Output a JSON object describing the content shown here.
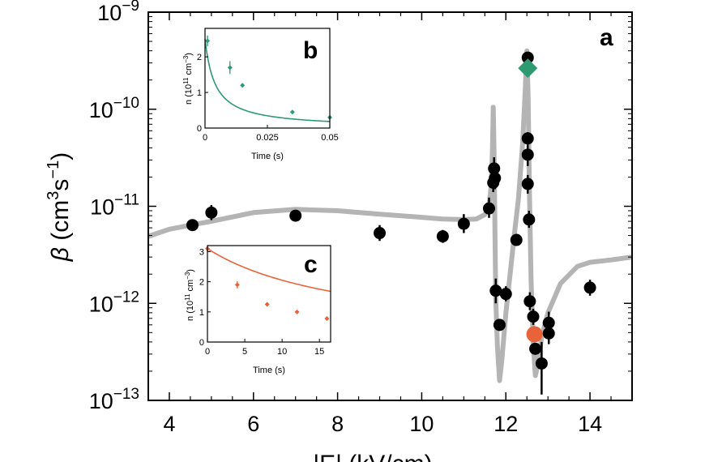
{
  "chart_data": [
    {
      "panel": "a",
      "type": "scatter",
      "panel_label": "a",
      "xlabel": "|E| (kV/cm)",
      "ylabel": "β (cm³s⁻¹)",
      "ylabel_parts": {
        "symbol": "β",
        "open": " (cm",
        "exp1": "3",
        "mid": "s",
        "exp2": "−1",
        "close": ")"
      },
      "yscale": "log",
      "xlim": [
        3.5,
        15
      ],
      "ylim": [
        1e-13,
        1e-09
      ],
      "xticks": [
        4,
        6,
        8,
        10,
        12,
        14
      ],
      "xtick_labels": [
        "4",
        "6",
        "8",
        "10",
        "12",
        "14"
      ],
      "yticks_exp": [
        -9,
        -10,
        -11,
        -12,
        -13
      ],
      "ytick_labels": [
        {
          "base": "10",
          "exp": "−9"
        },
        {
          "base": "10",
          "exp": "−10"
        },
        {
          "base": "10",
          "exp": "−11"
        },
        {
          "base": "10",
          "exp": "−12"
        },
        {
          "base": "10",
          "exp": "−13"
        }
      ],
      "points": [
        {
          "x": 4.55,
          "y": 6.4e-12,
          "lo": 6.4e-12,
          "hi": 6.4e-12
        },
        {
          "x": 5.0,
          "y": 8.6e-12,
          "lo": 7.2e-12,
          "hi": 1.03e-11
        },
        {
          "x": 7.0,
          "y": 8e-12,
          "lo": 8e-12,
          "hi": 8e-12
        },
        {
          "x": 9.0,
          "y": 5.3e-12,
          "lo": 4.4e-12,
          "hi": 6.4e-12
        },
        {
          "x": 10.5,
          "y": 4.9e-12,
          "lo": 4.2e-12,
          "hi": 5.7e-12
        },
        {
          "x": 11.0,
          "y": 6.6e-12,
          "lo": 5.3e-12,
          "hi": 8.3e-12
        },
        {
          "x": 11.6,
          "y": 9.5e-12,
          "lo": 7.6e-12,
          "hi": 1.23e-11
        },
        {
          "x": 11.7,
          "y": 1.75e-11,
          "lo": 1.4e-11,
          "hi": 2.2e-11
        },
        {
          "x": 11.72,
          "y": 2.45e-11,
          "lo": 1.9e-11,
          "hi": 3.2e-11
        },
        {
          "x": 11.74,
          "y": 1.95e-11,
          "lo": 1.5e-11,
          "hi": 2.5e-11
        },
        {
          "x": 11.76,
          "y": 1.35e-12,
          "lo": 1e-12,
          "hi": 1.8e-12
        },
        {
          "x": 11.85,
          "y": 6e-13,
          "lo": 6e-13,
          "hi": 6e-13
        },
        {
          "x": 12.0,
          "y": 1.25e-12,
          "lo": 1.05e-12,
          "hi": 1.5e-12
        },
        {
          "x": 12.25,
          "y": 4.5e-12,
          "lo": 4.5e-12,
          "hi": 4.5e-12
        },
        {
          "x": 12.52,
          "y": 3.4e-10,
          "lo": 2.9e-10,
          "hi": 3.9e-10
        },
        {
          "x": 12.52,
          "y": 5e-11,
          "lo": 4.3e-11,
          "hi": 5.8e-11
        },
        {
          "x": 12.52,
          "y": 3.4e-11,
          "lo": 2.6e-11,
          "hi": 4.3e-11
        },
        {
          "x": 12.52,
          "y": 1.7e-11,
          "lo": 1.35e-11,
          "hi": 2.1e-11
        },
        {
          "x": 12.55,
          "y": 7.3e-12,
          "lo": 6e-12,
          "hi": 9e-12
        },
        {
          "x": 12.57,
          "y": 1.05e-12,
          "lo": 8.5e-13,
          "hi": 1.3e-12
        },
        {
          "x": 12.65,
          "y": 7.3e-13,
          "lo": 6e-13,
          "hi": 8.8e-13
        },
        {
          "x": 12.7,
          "y": 3.4e-13,
          "lo": 3.4e-13,
          "hi": 3.4e-13
        },
        {
          "x": 12.85,
          "y": 2.4e-13,
          "lo": 1.15e-13,
          "hi": 4e-13
        },
        {
          "x": 13.02,
          "y": 6.3e-13,
          "lo": 4.7e-13,
          "hi": 8.2e-13
        },
        {
          "x": 13.02,
          "y": 4.9e-13,
          "lo": 3.8e-13,
          "hi": 6.3e-13
        },
        {
          "x": 14.0,
          "y": 1.45e-12,
          "lo": 1.2e-12,
          "hi": 1.75e-12
        }
      ],
      "special_points": [
        {
          "name": "panel-b-measurement",
          "marker": "diamond",
          "color": "#2e9a72",
          "x": 12.52,
          "y": 2.65e-10
        },
        {
          "name": "panel-c-measurement",
          "marker": "circle",
          "color": "#e8623a",
          "x": 12.68,
          "y": 4.8e-13
        }
      ],
      "theory_curve": {
        "color": "#b4b4b4",
        "x": [
          3.5,
          4.0,
          5.0,
          6.0,
          7.0,
          8.0,
          9.0,
          10.0,
          10.5,
          11.0,
          11.3,
          11.5,
          11.6,
          11.65,
          11.68,
          11.7,
          11.72,
          11.74,
          11.76,
          11.8,
          11.85,
          11.9,
          12.0,
          12.1,
          12.2,
          12.3,
          12.4,
          12.45,
          12.5,
          12.53,
          12.56,
          12.6,
          12.65,
          12.7,
          12.75,
          12.85,
          13.0,
          13.3,
          13.7,
          14.0,
          14.5,
          15.0
        ],
        "y": [
          4.9e-12,
          5.8e-12,
          7e-12,
          8.6e-12,
          9.3e-12,
          9e-12,
          8.3e-12,
          7.7e-12,
          7.4e-12,
          7.3e-12,
          7.4e-12,
          8.2e-12,
          1e-11,
          1.6e-11,
          3.5e-11,
          1.05e-10,
          3.6e-11,
          5.5e-12,
          1.1e-12,
          3.5e-13,
          1.6e-13,
          2.5e-13,
          8e-13,
          2e-12,
          5e-12,
          1.2e-11,
          4.5e-11,
          1.25e-10,
          4e-10,
          1.3e-10,
          1.5e-11,
          1.7e-12,
          4e-13,
          1.8e-13,
          2.2e-13,
          4.5e-13,
          8e-13,
          1.6e-12,
          2.4e-12,
          2.65e-12,
          2.8e-12,
          3e-12
        ]
      }
    },
    {
      "panel": "b",
      "type": "scatter",
      "panel_label": "b",
      "color": "#2e9a72",
      "xlabel": "Time (s)",
      "ylabel": "n (10¹¹ cm⁻³)",
      "ylabel_parts": {
        "a": "n (10",
        "exp1": "11",
        "b": " cm",
        "exp2": "−3",
        "c": ")"
      },
      "xlim": [
        0,
        0.05
      ],
      "ylim": [
        0,
        2.8
      ],
      "xticks": [
        0,
        0.025,
        0.05
      ],
      "xtick_labels": [
        "0",
        "0.025",
        "0.05"
      ],
      "yticks": [
        0,
        1,
        2
      ],
      "ytick_labels": [
        "0",
        "1",
        "2"
      ],
      "points": [
        {
          "x": 0.001,
          "y": 2.45,
          "err": 0.15
        },
        {
          "x": 0.01,
          "y": 1.7,
          "err": 0.18
        },
        {
          "x": 0.015,
          "y": 1.2,
          "err": 0.06
        },
        {
          "x": 0.035,
          "y": 0.45,
          "err": 0.03
        },
        {
          "x": 0.05,
          "y": 0.3,
          "err": 0.03
        }
      ],
      "fit": {
        "n0": 2.5,
        "k": 100
      }
    },
    {
      "panel": "c",
      "type": "scatter",
      "panel_label": "c",
      "color": "#e8623a",
      "xlabel": "Time (s)",
      "ylabel": "n (10¹¹ cm⁻³)",
      "ylabel_parts": {
        "a": "n (10",
        "exp1": "11",
        "b": " cm",
        "exp2": "−3",
        "c": ")"
      },
      "xlim": [
        0,
        16.5
      ],
      "ylim": [
        0,
        3.2
      ],
      "xticks": [
        0,
        5,
        10,
        15
      ],
      "xtick_labels": [
        "0",
        "5",
        "10",
        "15"
      ],
      "yticks": [
        0,
        1,
        2,
        3
      ],
      "ytick_labels": [
        "0",
        "1",
        "2",
        "3"
      ],
      "points": [
        {
          "x": 0,
          "y": 3.1,
          "err": 0.08
        },
        {
          "x": 4,
          "y": 1.9,
          "err": 0.12
        },
        {
          "x": 8,
          "y": 1.25,
          "err": 0.06
        },
        {
          "x": 12,
          "y": 1.0,
          "err": 0.04
        },
        {
          "x": 16,
          "y": 0.78,
          "err": 0.04
        }
      ],
      "fit": {
        "n0": 3.1,
        "k": 0.0165
      }
    }
  ]
}
